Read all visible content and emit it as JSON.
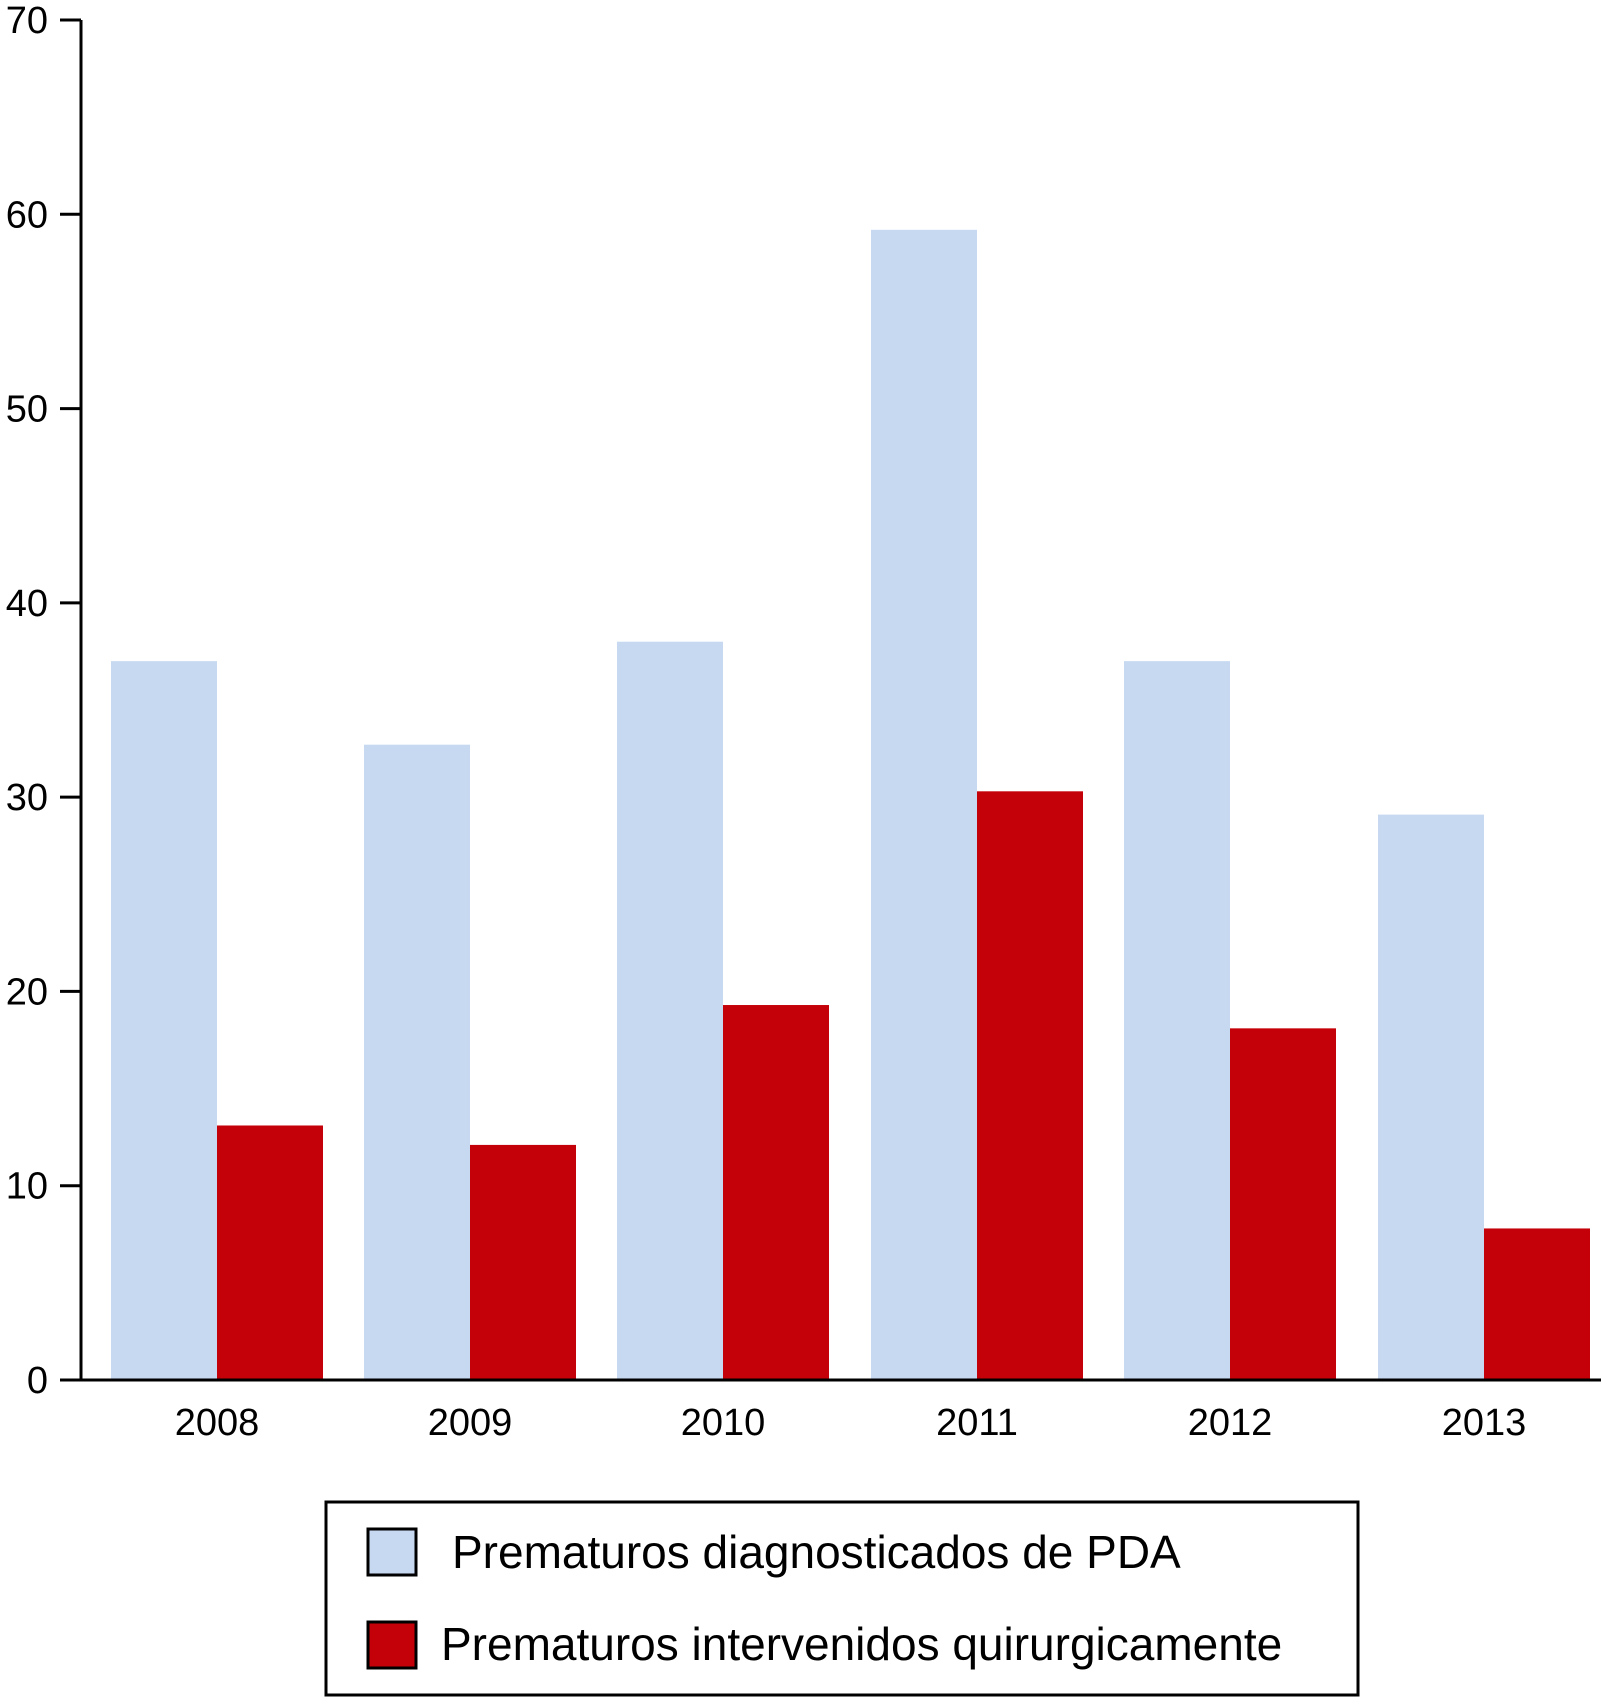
{
  "chart_data": {
    "type": "bar",
    "categories": [
      "2008",
      "2009",
      "2010",
      "2011",
      "2012",
      "2013"
    ],
    "series": [
      {
        "name": "Prematuros diagnosticados de PDA",
        "color": "#c6d9f1",
        "values": [
          37,
          32.7,
          38,
          59.2,
          37,
          29.1
        ]
      },
      {
        "name": "Prematuros intervenidos quirurgicamente",
        "color": "#c40008",
        "values": [
          13.1,
          12.1,
          19.3,
          30.3,
          18.1,
          7.8
        ]
      }
    ],
    "title": "",
    "xlabel": "",
    "ylabel": "",
    "ylim": [
      0,
      70
    ],
    "yticks": [
      "0",
      "10",
      "20",
      "30",
      "40",
      "50",
      "60",
      "70"
    ],
    "grid": false,
    "legend_position": "bottom-center"
  }
}
